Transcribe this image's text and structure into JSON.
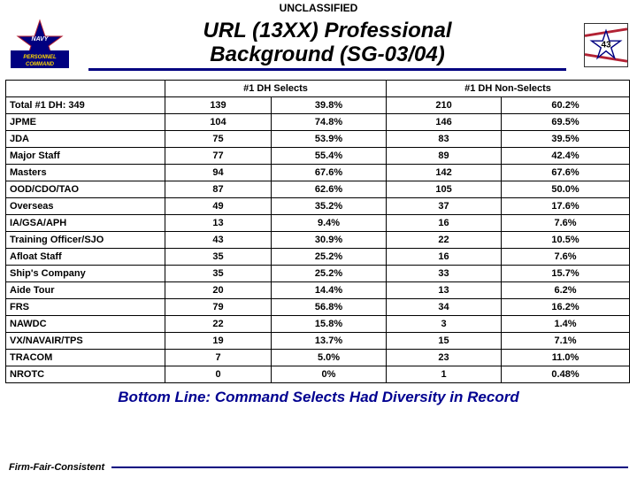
{
  "classification": "UNCLASSIFIED",
  "title_line1": "URL (13XX) Professional",
  "title_line2": "Background (SG-03/04)",
  "page_number": "43",
  "table": {
    "header_selects": "#1 DH Selects",
    "header_nonselects": "#1 DH Non-Selects",
    "rows": [
      {
        "label": "Total #1 DH: 349",
        "sel_n": "139",
        "sel_pct": "39.8%",
        "non_n": "210",
        "non_pct": "60.2%"
      },
      {
        "label": "JPME",
        "sel_n": "104",
        "sel_pct": "74.8%",
        "non_n": "146",
        "non_pct": "69.5%"
      },
      {
        "label": "JDA",
        "sel_n": "75",
        "sel_pct": "53.9%",
        "non_n": "83",
        "non_pct": "39.5%"
      },
      {
        "label": "Major Staff",
        "sel_n": "77",
        "sel_pct": "55.4%",
        "non_n": "89",
        "non_pct": "42.4%"
      },
      {
        "label": "Masters",
        "sel_n": "94",
        "sel_pct": "67.6%",
        "non_n": "142",
        "non_pct": "67.6%"
      },
      {
        "label": "OOD/CDO/TAO",
        "sel_n": "87",
        "sel_pct": "62.6%",
        "non_n": "105",
        "non_pct": "50.0%"
      },
      {
        "label": "Overseas",
        "sel_n": "49",
        "sel_pct": "35.2%",
        "non_n": "37",
        "non_pct": "17.6%"
      },
      {
        "label": "IA/GSA/APH",
        "sel_n": "13",
        "sel_pct": "9.4%",
        "non_n": "16",
        "non_pct": "7.6%"
      },
      {
        "label": "Training Officer/SJO",
        "sel_n": "43",
        "sel_pct": "30.9%",
        "non_n": "22",
        "non_pct": "10.5%"
      },
      {
        "label": "Afloat Staff",
        "sel_n": "35",
        "sel_pct": "25.2%",
        "non_n": "16",
        "non_pct": "7.6%"
      },
      {
        "label": "Ship's Company",
        "sel_n": "35",
        "sel_pct": "25.2%",
        "non_n": "33",
        "non_pct": "15.7%"
      },
      {
        "label": "Aide Tour",
        "sel_n": "20",
        "sel_pct": "14.4%",
        "non_n": "13",
        "non_pct": "6.2%"
      },
      {
        "label": "FRS",
        "sel_n": "79",
        "sel_pct": "56.8%",
        "non_n": "34",
        "non_pct": "16.2%"
      },
      {
        "label": "NAWDC",
        "sel_n": "22",
        "sel_pct": "15.8%",
        "non_n": "3",
        "non_pct": "1.4%"
      },
      {
        "label": "VX/NAVAIR/TPS",
        "sel_n": "19",
        "sel_pct": "13.7%",
        "non_n": "15",
        "non_pct": "7.1%"
      },
      {
        "label": "TRACOM",
        "sel_n": "7",
        "sel_pct": "5.0%",
        "non_n": "23",
        "non_pct": "11.0%"
      },
      {
        "label": "NROTC",
        "sel_n": "0",
        "sel_pct": "0%",
        "non_n": "1",
        "non_pct": "0.48%"
      }
    ]
  },
  "bottom_line": "Bottom Line: Command Selects Had Diversity in Record",
  "footer": "Firm-Fair-Consistent",
  "colors": {
    "navy_blue": "#000080",
    "red": "#b22234",
    "white": "#ffffff"
  }
}
